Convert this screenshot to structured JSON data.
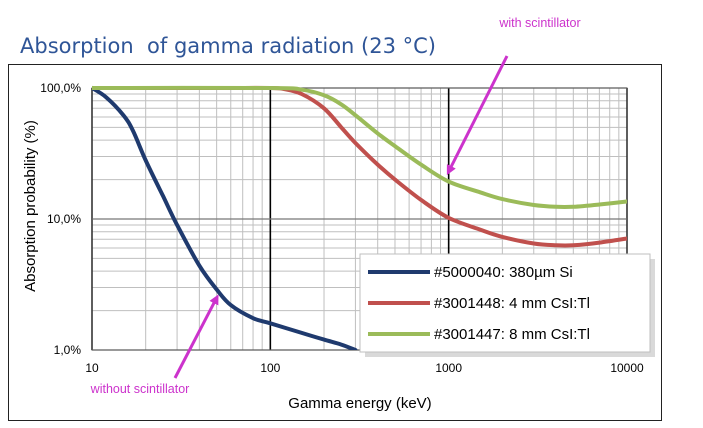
{
  "page": {
    "title": "Absorption  of gamma radiation (23 °C)"
  },
  "chart_data": {
    "type": "line",
    "title": "Absorption  of gamma radiation (23 °C)",
    "xlabel": "Gamma energy (keV)",
    "ylabel": "Absorption probability (%)",
    "xscale": "log",
    "yscale": "log",
    "xlim": [
      10,
      10000
    ],
    "ylim": [
      1,
      100
    ],
    "x_ticks": [
      {
        "value": 10,
        "label": "10"
      },
      {
        "value": 100,
        "label": "100"
      },
      {
        "value": 1000,
        "label": "1000"
      },
      {
        "value": 10000,
        "label": "10000"
      }
    ],
    "y_ticks": [
      {
        "value": 1,
        "label": "1,0%"
      },
      {
        "value": 10,
        "label": "10,0%"
      },
      {
        "value": 100,
        "label": "100,0%"
      }
    ],
    "grid": "major and minor",
    "legend_position": "bottom-right",
    "series": [
      {
        "name": "#5000040: 380µm Si",
        "color": "#1f3a6e",
        "x": [
          10,
          12,
          15,
          17,
          20,
          25,
          30,
          40,
          50,
          60,
          80,
          100,
          150,
          200,
          250,
          300
        ],
        "y": [
          100,
          85,
          62,
          47,
          28,
          15,
          9,
          4.4,
          2.9,
          2.2,
          1.75,
          1.6,
          1.35,
          1.2,
          1.1,
          1.0
        ]
      },
      {
        "name": "#3001448: 4 mm CsI:Tl",
        "color": "#c0504d",
        "x": [
          10,
          50,
          100,
          120,
          150,
          200,
          250,
          300,
          400,
          500,
          700,
          1000,
          1500,
          2000,
          3000,
          4000,
          5000,
          7000,
          10000
        ],
        "y": [
          100,
          100,
          100,
          98,
          90,
          70,
          50,
          38,
          26,
          20,
          14,
          10.2,
          8.3,
          7.3,
          6.5,
          6.3,
          6.3,
          6.6,
          7.1
        ]
      },
      {
        "name": "#3001447: 8 mm CsI:Tl",
        "color": "#9bbb59",
        "x": [
          10,
          100,
          150,
          200,
          250,
          300,
          400,
          500,
          700,
          1000,
          1500,
          2000,
          3000,
          4000,
          5000,
          7000,
          10000
        ],
        "y": [
          100,
          100,
          97,
          88,
          75,
          62,
          45,
          36,
          26,
          19.3,
          16,
          14.2,
          12.8,
          12.4,
          12.4,
          12.9,
          13.6
        ]
      }
    ],
    "annotations": [
      {
        "text": "with scintillator",
        "color": "#cc33cc",
        "points_to": {
          "x": 1000,
          "y": 23
        }
      },
      {
        "text": "without scintillator",
        "color": "#cc33cc",
        "points_to": {
          "x": 50,
          "y": 2.5
        }
      }
    ]
  }
}
